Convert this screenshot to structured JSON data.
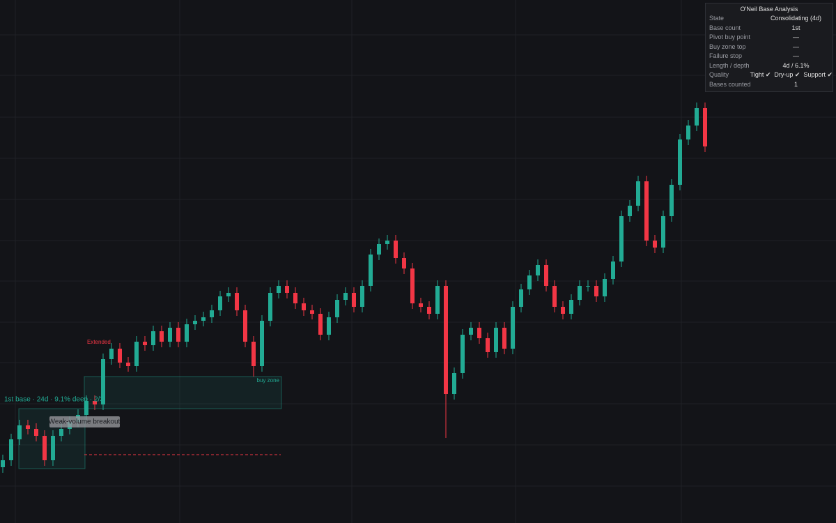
{
  "chart_data": {
    "type": "candlestick",
    "ylim": [
      0,
      750
    ],
    "up_color": "#22ab94",
    "down_color": "#f23645",
    "open": [
      80,
      90,
      120,
      140,
      135,
      125,
      90,
      125,
      135,
      145,
      155,
      175,
      170,
      235,
      250,
      230,
      225,
      260,
      255,
      275,
      260,
      280,
      260,
      285,
      290,
      295,
      305,
      325,
      330,
      305,
      260,
      225,
      290,
      330,
      340,
      330,
      315,
      305,
      300,
      270,
      295,
      320,
      330,
      310,
      340,
      385,
      400,
      405,
      380,
      365,
      315,
      310,
      300,
      340,
      185,
      215,
      270,
      280,
      265,
      245,
      280,
      250,
      310,
      335,
      355,
      370,
      340,
      310,
      300,
      320,
      340,
      340,
      325,
      350,
      375,
      440,
      455,
      490,
      405,
      395,
      440,
      485,
      550,
      570,
      595
    ],
    "high": [
      98,
      128,
      148,
      148,
      143,
      133,
      133,
      143,
      153,
      163,
      183,
      183,
      243,
      258,
      258,
      238,
      268,
      268,
      283,
      283,
      288,
      288,
      293,
      298,
      303,
      313,
      333,
      338,
      338,
      313,
      268,
      298,
      338,
      348,
      348,
      338,
      323,
      313,
      308,
      303,
      328,
      338,
      338,
      348,
      393,
      408,
      413,
      413,
      388,
      373,
      323,
      318,
      348,
      348,
      223,
      278,
      288,
      288,
      273,
      288,
      288,
      318,
      343,
      363,
      378,
      378,
      348,
      318,
      328,
      348,
      348,
      348,
      358,
      383,
      448,
      463,
      498,
      498,
      413,
      448,
      493,
      558,
      578,
      603,
      603
    ],
    "low": [
      72,
      82,
      112,
      127,
      117,
      82,
      82,
      117,
      127,
      137,
      147,
      162,
      162,
      227,
      222,
      217,
      217,
      247,
      247,
      252,
      252,
      252,
      252,
      277,
      282,
      287,
      297,
      317,
      297,
      252,
      210,
      217,
      282,
      322,
      322,
      307,
      297,
      292,
      262,
      262,
      287,
      312,
      302,
      302,
      332,
      377,
      392,
      372,
      357,
      307,
      302,
      292,
      292,
      122,
      177,
      207,
      262,
      257,
      237,
      237,
      242,
      242,
      302,
      327,
      347,
      332,
      302,
      292,
      292,
      312,
      332,
      317,
      317,
      342,
      367,
      432,
      447,
      397,
      387,
      387,
      432,
      477,
      542,
      562,
      532
    ],
    "close": [
      90,
      120,
      140,
      135,
      125,
      90,
      125,
      135,
      145,
      155,
      175,
      170,
      235,
      250,
      230,
      225,
      260,
      255,
      275,
      260,
      280,
      260,
      285,
      290,
      295,
      305,
      325,
      330,
      305,
      260,
      225,
      290,
      330,
      340,
      330,
      315,
      305,
      300,
      270,
      295,
      320,
      330,
      310,
      340,
      385,
      400,
      405,
      380,
      365,
      315,
      310,
      300,
      340,
      185,
      215,
      270,
      280,
      265,
      245,
      280,
      250,
      310,
      335,
      355,
      370,
      340,
      310,
      300,
      320,
      340,
      340,
      325,
      350,
      375,
      440,
      455,
      490,
      405,
      395,
      440,
      485,
      550,
      570,
      595,
      540
    ],
    "annotations": {
      "extended": "Extended",
      "buy_zone": "buy zone",
      "base": "1st base · 24d · 9.1% deep · 2/3",
      "breakout": "Weak-volume breakout"
    }
  },
  "panel": {
    "title": "O'Neil Base Analysis",
    "rows": [
      [
        "State",
        "Consolidating (4d)"
      ],
      [
        "Base count",
        "1st"
      ],
      [
        "Pivot buy point",
        "—"
      ],
      [
        "Buy zone top",
        "—"
      ],
      [
        "Failure stop",
        "—"
      ],
      [
        "Length / depth",
        "4d / 6.1%"
      ],
      [
        "Quality",
        "Tight ✔  Dry-up ✔  Support ✔"
      ],
      [
        "Bases counted",
        "1"
      ]
    ]
  }
}
